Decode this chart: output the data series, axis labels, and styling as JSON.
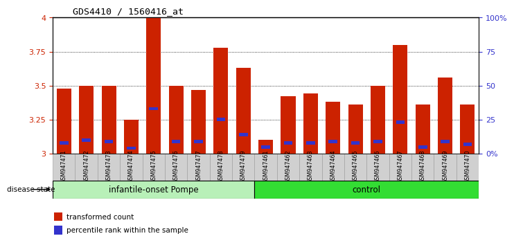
{
  "title": "GDS4410 / 1560416_at",
  "samples": [
    "GSM947471",
    "GSM947472",
    "GSM947473",
    "GSM947474",
    "GSM947475",
    "GSM947476",
    "GSM947477",
    "GSM947478",
    "GSM947479",
    "GSM947461",
    "GSM947462",
    "GSM947463",
    "GSM947464",
    "GSM947465",
    "GSM947466",
    "GSM947467",
    "GSM947468",
    "GSM947469",
    "GSM947470"
  ],
  "red_values": [
    3.48,
    3.5,
    3.5,
    3.25,
    4.0,
    3.5,
    3.47,
    3.78,
    3.63,
    3.1,
    3.42,
    3.44,
    3.38,
    3.36,
    3.5,
    3.8,
    3.36,
    3.56,
    3.36
  ],
  "blue_values": [
    3.08,
    3.1,
    3.09,
    3.04,
    3.33,
    3.09,
    3.09,
    3.25,
    3.14,
    3.05,
    3.08,
    3.08,
    3.09,
    3.08,
    3.09,
    3.23,
    3.05,
    3.09,
    3.07
  ],
  "group1_label": "infantile-onset Pompe",
  "group1_count": 9,
  "group2_label": "control",
  "group2_count": 10,
  "group1_color": "#b8f0b8",
  "group2_color": "#33dd33",
  "ymin": 3.0,
  "ymax": 4.0,
  "yticks": [
    3.0,
    3.25,
    3.5,
    3.75,
    4.0
  ],
  "ytick_labels": [
    "3",
    "3.25",
    "3.5",
    "3.75",
    "4"
  ],
  "right_yticks": [
    0,
    25,
    50,
    75,
    100
  ],
  "right_ytick_labels": [
    "0%",
    "25",
    "50",
    "75",
    "100%"
  ],
  "bar_color": "#cc2200",
  "blue_color": "#3333cc",
  "bar_width": 0.65,
  "disease_state_label": "disease state",
  "legend_red": "transformed count",
  "legend_blue": "percentile rank within the sample"
}
